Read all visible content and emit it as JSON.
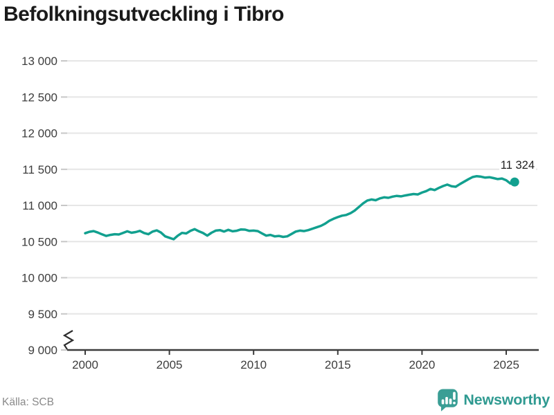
{
  "chart_data": {
    "type": "line",
    "title": "Befolkningsutveckling i Tibro",
    "xlabel": "",
    "ylabel": "",
    "ylim": [
      9000,
      13000
    ],
    "xlim": [
      2000,
      2026.7
    ],
    "axis_break": true,
    "grid": true,
    "legend": "none",
    "line_color": "#12a08f",
    "yticks": [
      {
        "value": 9000,
        "label": "9 000"
      },
      {
        "value": 9500,
        "label": "9 500"
      },
      {
        "value": 10000,
        "label": "10 000"
      },
      {
        "value": 10500,
        "label": "10 500"
      },
      {
        "value": 11000,
        "label": "11 000"
      },
      {
        "value": 11500,
        "label": "11 500"
      },
      {
        "value": 12000,
        "label": "12 000"
      },
      {
        "value": 12500,
        "label": "12 500"
      },
      {
        "value": 13000,
        "label": "13 000"
      }
    ],
    "xticks": [
      {
        "value": 2000,
        "label": "2000"
      },
      {
        "value": 2005,
        "label": "2005"
      },
      {
        "value": 2010,
        "label": "2010"
      },
      {
        "value": 2015,
        "label": "2015"
      },
      {
        "value": 2020,
        "label": "2020"
      },
      {
        "value": 2025,
        "label": "2025"
      }
    ],
    "annotation": {
      "label": "11 324",
      "value": 11324
    },
    "series": [
      {
        "points": [
          [
            2000.0,
            10615
          ],
          [
            2000.25,
            10635
          ],
          [
            2000.5,
            10645
          ],
          [
            2000.75,
            10625
          ],
          [
            2001.0,
            10600
          ],
          [
            2001.25,
            10578
          ],
          [
            2001.5,
            10592
          ],
          [
            2001.75,
            10602
          ],
          [
            2002.0,
            10598
          ],
          [
            2002.25,
            10620
          ],
          [
            2002.5,
            10642
          ],
          [
            2002.75,
            10622
          ],
          [
            2003.0,
            10632
          ],
          [
            2003.25,
            10648
          ],
          [
            2003.5,
            10618
          ],
          [
            2003.75,
            10602
          ],
          [
            2004.0,
            10638
          ],
          [
            2004.25,
            10655
          ],
          [
            2004.5,
            10625
          ],
          [
            2004.75,
            10572
          ],
          [
            2005.0,
            10552
          ],
          [
            2005.25,
            10532
          ],
          [
            2005.5,
            10582
          ],
          [
            2005.75,
            10620
          ],
          [
            2006.0,
            10612
          ],
          [
            2006.25,
            10648
          ],
          [
            2006.5,
            10672
          ],
          [
            2006.75,
            10642
          ],
          [
            2007.0,
            10618
          ],
          [
            2007.25,
            10582
          ],
          [
            2007.5,
            10622
          ],
          [
            2007.75,
            10652
          ],
          [
            2008.0,
            10658
          ],
          [
            2008.25,
            10638
          ],
          [
            2008.5,
            10662
          ],
          [
            2008.75,
            10642
          ],
          [
            2009.0,
            10650
          ],
          [
            2009.25,
            10668
          ],
          [
            2009.5,
            10665
          ],
          [
            2009.75,
            10648
          ],
          [
            2010.0,
            10652
          ],
          [
            2010.25,
            10645
          ],
          [
            2010.5,
            10612
          ],
          [
            2010.75,
            10582
          ],
          [
            2011.0,
            10592
          ],
          [
            2011.25,
            10572
          ],
          [
            2011.5,
            10578
          ],
          [
            2011.75,
            10565
          ],
          [
            2012.0,
            10572
          ],
          [
            2012.25,
            10605
          ],
          [
            2012.5,
            10638
          ],
          [
            2012.75,
            10652
          ],
          [
            2013.0,
            10645
          ],
          [
            2013.25,
            10658
          ],
          [
            2013.5,
            10678
          ],
          [
            2013.75,
            10698
          ],
          [
            2014.0,
            10718
          ],
          [
            2014.25,
            10748
          ],
          [
            2014.5,
            10788
          ],
          [
            2014.75,
            10815
          ],
          [
            2015.0,
            10838
          ],
          [
            2015.25,
            10858
          ],
          [
            2015.5,
            10868
          ],
          [
            2015.75,
            10892
          ],
          [
            2016.0,
            10928
          ],
          [
            2016.25,
            10978
          ],
          [
            2016.5,
            11028
          ],
          [
            2016.75,
            11068
          ],
          [
            2017.0,
            11082
          ],
          [
            2017.25,
            11072
          ],
          [
            2017.5,
            11098
          ],
          [
            2017.75,
            11112
          ],
          [
            2018.0,
            11105
          ],
          [
            2018.25,
            11122
          ],
          [
            2018.5,
            11132
          ],
          [
            2018.75,
            11125
          ],
          [
            2019.0,
            11138
          ],
          [
            2019.25,
            11148
          ],
          [
            2019.5,
            11158
          ],
          [
            2019.75,
            11152
          ],
          [
            2020.0,
            11178
          ],
          [
            2020.25,
            11198
          ],
          [
            2020.5,
            11228
          ],
          [
            2020.75,
            11212
          ],
          [
            2021.0,
            11242
          ],
          [
            2021.25,
            11268
          ],
          [
            2021.5,
            11288
          ],
          [
            2021.75,
            11265
          ],
          [
            2022.0,
            11258
          ],
          [
            2022.25,
            11295
          ],
          [
            2022.5,
            11328
          ],
          [
            2022.75,
            11362
          ],
          [
            2023.0,
            11392
          ],
          [
            2023.25,
            11405
          ],
          [
            2023.5,
            11398
          ],
          [
            2023.75,
            11385
          ],
          [
            2024.0,
            11390
          ],
          [
            2024.25,
            11378
          ],
          [
            2024.5,
            11365
          ],
          [
            2024.75,
            11372
          ],
          [
            2025.0,
            11348
          ],
          [
            2025.25,
            11302
          ],
          [
            2025.5,
            11324
          ]
        ]
      }
    ]
  },
  "footer": {
    "source": "Källa: SCB",
    "brand": "Newsworthy",
    "brand_color": "#2f9a91",
    "logo_color": "#3a9e95"
  }
}
